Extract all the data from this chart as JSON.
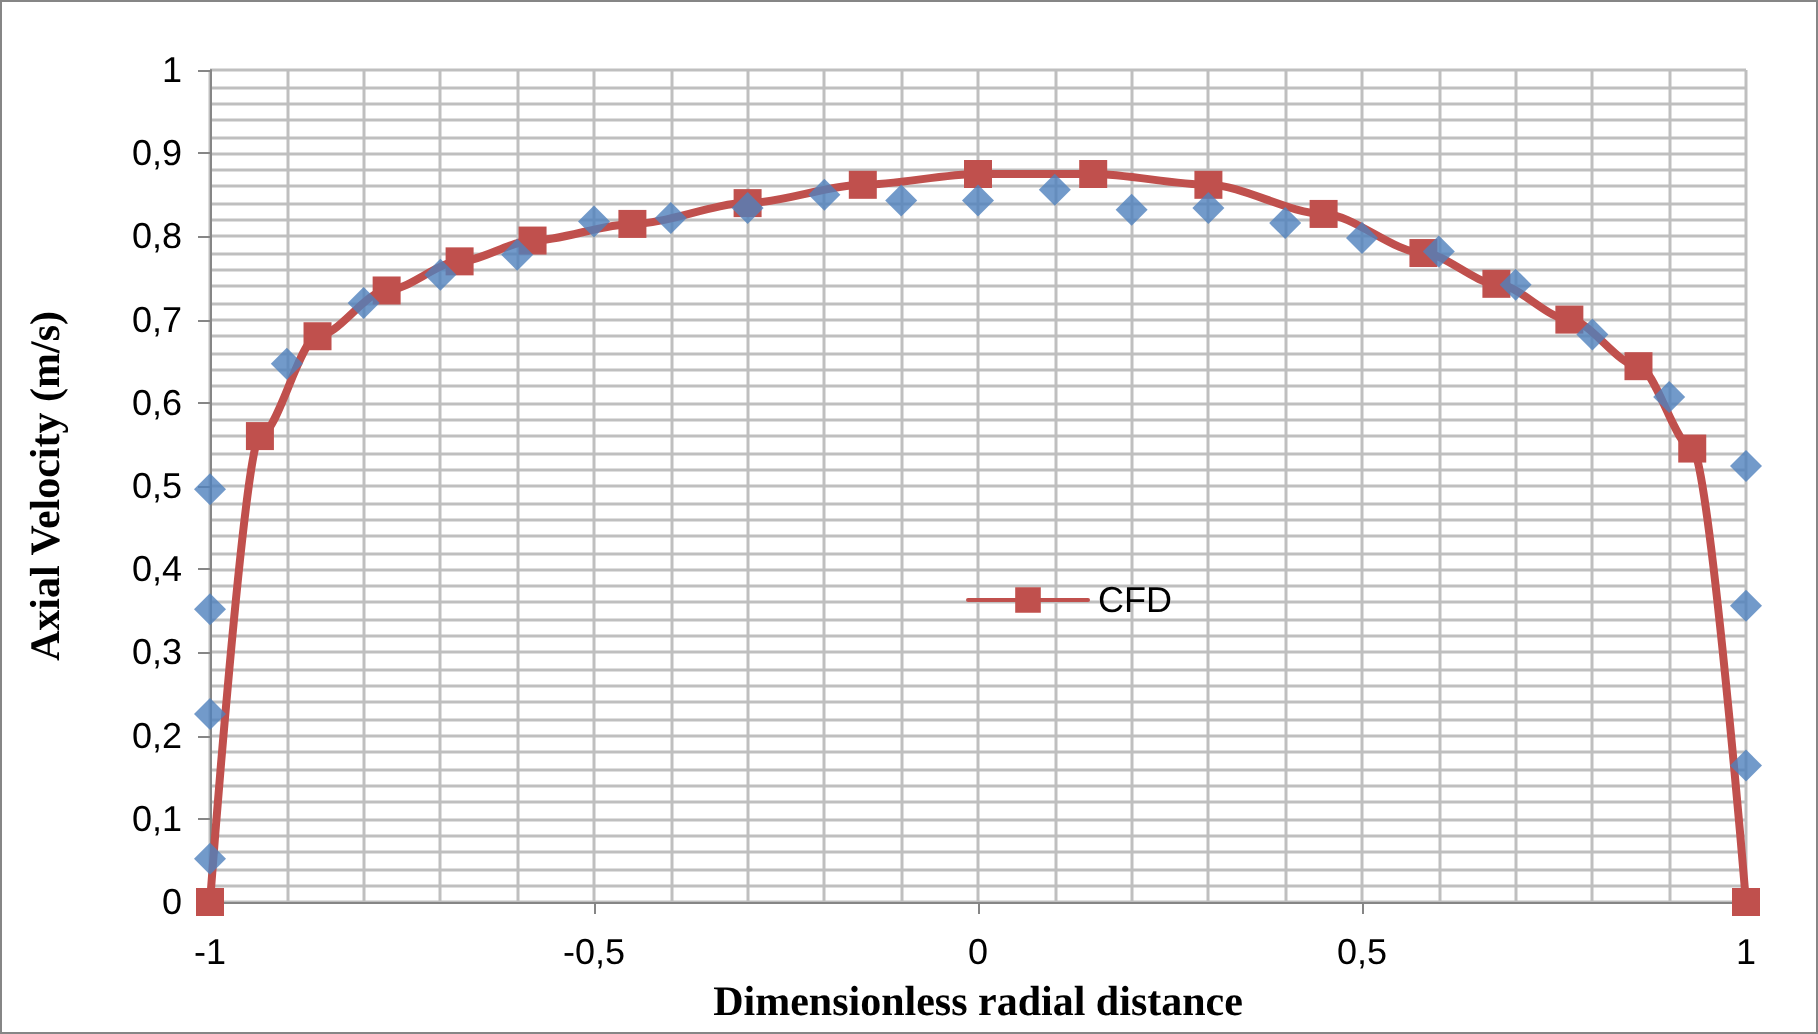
{
  "chart_data": {
    "type": "line",
    "xlabel": "Dimensionless radial distance",
    "ylabel": "Axial Velocity (m/s)",
    "xlim": [
      -1,
      1
    ],
    "xticks": [
      -1,
      {
        "value": -0.5,
        "label": "-0,5"
      },
      0,
      {
        "value": 0.5,
        "label": "0,5"
      },
      1
    ],
    "ylim": [
      0,
      1
    ],
    "yticks": [
      0,
      {
        "value": 0.1,
        "label": "0,1"
      },
      {
        "value": 0.2,
        "label": "0,2"
      },
      {
        "value": 0.3,
        "label": "0,3"
      },
      {
        "value": 0.4,
        "label": "0,4"
      },
      {
        "value": 0.5,
        "label": "0,5"
      },
      {
        "value": 0.6,
        "label": "0,6"
      },
      {
        "value": 0.7,
        "label": "0,7"
      },
      {
        "value": 0.8,
        "label": "0,8"
      },
      {
        "value": 0.9,
        "label": "0,9"
      },
      1
    ],
    "grid": true,
    "legend": "center",
    "series": [
      {
        "name": "CFD",
        "color": "#c0504d",
        "marker": "square",
        "line_style": "solid",
        "x": [
          -1,
          -0.935,
          -0.86,
          -0.77,
          -0.675,
          -0.58,
          -0.45,
          -0.3,
          -0.15,
          0,
          0.15,
          0.3,
          0.45,
          0.58,
          0.675,
          0.77,
          0.86,
          0.93,
          1
        ],
        "values": [
          0,
          0.56,
          0.68,
          0.735,
          0.77,
          0.795,
          0.815,
          0.84,
          0.862,
          0.875,
          0.875,
          0.862,
          0.827,
          0.78,
          0.743,
          0.7,
          0.644,
          0.545,
          0
        ]
      },
      {
        "type": "scatter",
        "color": "#4f81bd",
        "marker": "diamond",
        "x": [
          -1,
          -1,
          -1,
          -1,
          -0.9,
          -0.8,
          -0.7,
          -0.6,
          -0.5,
          -0.4,
          -0.3,
          -0.2,
          -0.1,
          0,
          0.1,
          0.2,
          0.3,
          0.4,
          0.5,
          0.6,
          0.7,
          0.8,
          0.9,
          1,
          1,
          1
        ],
        "values": [
          0.052,
          0.226,
          0.352,
          0.496,
          0.647,
          0.72,
          0.754,
          0.778,
          0.818,
          0.822,
          0.834,
          0.85,
          0.843,
          0.843,
          0.856,
          0.832,
          0.834,
          0.816,
          0.798,
          0.782,
          0.742,
          0.682,
          0.607,
          0.524,
          0.356,
          0.164
        ]
      }
    ]
  }
}
